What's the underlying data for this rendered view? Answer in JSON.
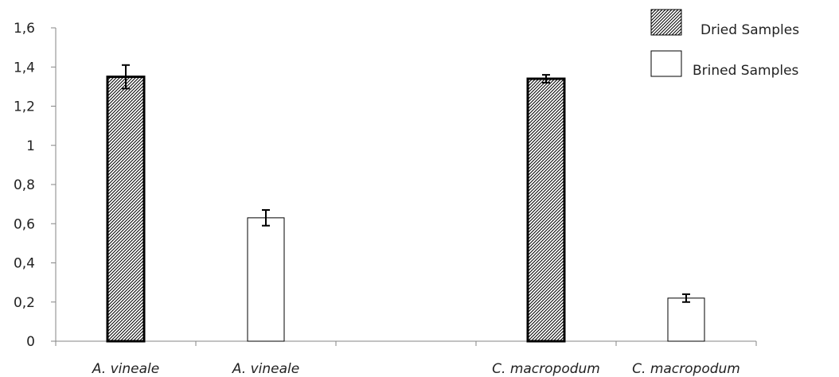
{
  "chart_data": {
    "type": "bar",
    "categories": [
      "A. vineale",
      "A. vineale",
      "",
      "C. macropodum",
      "C. macropodum"
    ],
    "series": [
      {
        "name": "Dried Samples",
        "fill": "hatched",
        "values": [
          1.35,
          null,
          null,
          1.34,
          null
        ],
        "errors": [
          0.06,
          null,
          null,
          0.02,
          null
        ]
      },
      {
        "name": "Brined Samples",
        "fill": "white",
        "values": [
          null,
          0.63,
          null,
          null,
          0.22
        ],
        "errors": [
          null,
          0.04,
          null,
          null,
          0.02
        ]
      }
    ],
    "title": "",
    "xlabel": "",
    "ylabel": "",
    "ylim": [
      0,
      1.6
    ],
    "yticks": [
      "0",
      "0,2",
      "0,4",
      "0,6",
      "0,8",
      "1",
      "1,2",
      "1,4",
      "1,6"
    ],
    "grid": false,
    "legend": "top-right",
    "colors": {
      "axis": "#868686",
      "bar_stroke": "#000000",
      "text": "#222222"
    }
  }
}
